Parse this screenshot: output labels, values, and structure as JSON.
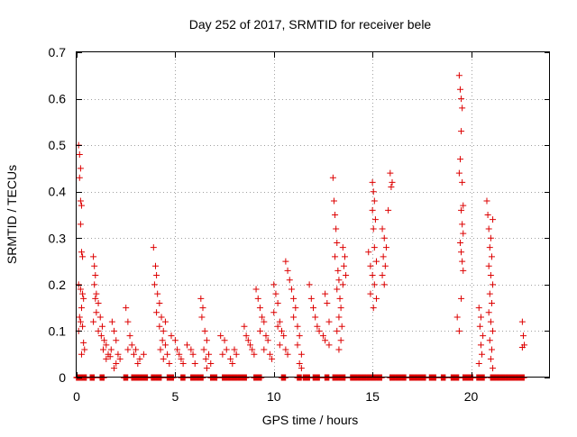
{
  "chart_data": {
    "type": "scatter",
    "title": "Day 252 of 2017, SRMTID for receiver bele",
    "xlabel": "GPS time / hours",
    "ylabel": "SRMTID / TECUs",
    "xlim": [
      0,
      24
    ],
    "ylim": [
      0,
      0.7
    ],
    "xticks": [
      0,
      5,
      10,
      15,
      20
    ],
    "xtick_labels": [
      "0",
      "5",
      "10",
      "15",
      "20"
    ],
    "yticks": [
      0,
      0.1,
      0.2,
      0.3,
      0.4,
      0.5,
      0.6,
      0.7
    ],
    "ytick_labels": [
      "0",
      "0.1",
      "0.2",
      "0.3",
      "0.4",
      "0.5",
      "0.6",
      "0.7"
    ],
    "grid": true,
    "marker": "+",
    "marker_color": "#dd0000",
    "series": [
      {
        "name": "SRMTID",
        "points": [
          [
            0.1,
            0.5
          ],
          [
            0.15,
            0.48
          ],
          [
            0.2,
            0.45
          ],
          [
            0.15,
            0.43
          ],
          [
            0.2,
            0.38
          ],
          [
            0.25,
            0.37
          ],
          [
            0.2,
            0.33
          ],
          [
            0.25,
            0.27
          ],
          [
            0.3,
            0.26
          ],
          [
            0.1,
            0.2
          ],
          [
            0.2,
            0.19
          ],
          [
            0.3,
            0.18
          ],
          [
            0.35,
            0.17
          ],
          [
            0.25,
            0.15
          ],
          [
            0.15,
            0.13
          ],
          [
            0.2,
            0.12
          ],
          [
            0.3,
            0.11
          ],
          [
            0.1,
            0.1
          ],
          [
            0.35,
            0.075
          ],
          [
            0.25,
            0.05
          ],
          [
            0.4,
            0.06
          ],
          [
            0.85,
            0.26
          ],
          [
            0.9,
            0.24
          ],
          [
            0.95,
            0.22
          ],
          [
            0.9,
            0.2
          ],
          [
            1.0,
            0.18
          ],
          [
            0.95,
            0.17
          ],
          [
            1.1,
            0.16
          ],
          [
            1.0,
            0.14
          ],
          [
            0.85,
            0.12
          ],
          [
            1.2,
            0.13
          ],
          [
            1.3,
            0.11
          ],
          [
            1.1,
            0.1
          ],
          [
            1.25,
            0.09
          ],
          [
            1.4,
            0.08
          ],
          [
            1.5,
            0.07
          ],
          [
            1.35,
            0.06
          ],
          [
            1.6,
            0.05
          ],
          [
            1.7,
            0.045
          ],
          [
            1.5,
            0.04
          ],
          [
            1.8,
            0.12
          ],
          [
            1.9,
            0.1
          ],
          [
            2.0,
            0.08
          ],
          [
            1.75,
            0.06
          ],
          [
            2.1,
            0.05
          ],
          [
            2.0,
            0.03
          ],
          [
            2.2,
            0.04
          ],
          [
            1.9,
            0.02
          ],
          [
            2.5,
            0.15
          ],
          [
            2.6,
            0.12
          ],
          [
            2.7,
            0.09
          ],
          [
            2.8,
            0.07
          ],
          [
            2.6,
            0.06
          ],
          [
            3.0,
            0.06
          ],
          [
            2.9,
            0.05
          ],
          [
            3.2,
            0.04
          ],
          [
            3.4,
            0.05
          ],
          [
            3.1,
            0.03
          ],
          [
            3.9,
            0.28
          ],
          [
            4.0,
            0.24
          ],
          [
            4.05,
            0.22
          ],
          [
            3.95,
            0.2
          ],
          [
            4.1,
            0.18
          ],
          [
            4.2,
            0.16
          ],
          [
            4.05,
            0.14
          ],
          [
            4.3,
            0.13
          ],
          [
            4.2,
            0.11
          ],
          [
            4.4,
            0.1
          ],
          [
            4.35,
            0.08
          ],
          [
            4.5,
            0.07
          ],
          [
            4.25,
            0.06
          ],
          [
            4.6,
            0.05
          ],
          [
            4.4,
            0.04
          ],
          [
            4.7,
            0.03
          ],
          [
            4.5,
            0.12
          ],
          [
            4.8,
            0.09
          ],
          [
            5.0,
            0.08
          ],
          [
            5.1,
            0.06
          ],
          [
            5.2,
            0.05
          ],
          [
            5.3,
            0.04
          ],
          [
            5.4,
            0.03
          ],
          [
            5.6,
            0.07
          ],
          [
            5.8,
            0.06
          ],
          [
            5.9,
            0.05
          ],
          [
            6.0,
            0.03
          ],
          [
            6.3,
            0.17
          ],
          [
            6.4,
            0.15
          ],
          [
            6.35,
            0.13
          ],
          [
            6.5,
            0.1
          ],
          [
            6.6,
            0.08
          ],
          [
            6.45,
            0.06
          ],
          [
            6.7,
            0.05
          ],
          [
            6.55,
            0.04
          ],
          [
            6.8,
            0.03
          ],
          [
            6.6,
            0.02
          ],
          [
            7.3,
            0.09
          ],
          [
            7.5,
            0.08
          ],
          [
            7.6,
            0.06
          ],
          [
            7.4,
            0.05
          ],
          [
            7.8,
            0.04
          ],
          [
            8.0,
            0.06
          ],
          [
            7.9,
            0.03
          ],
          [
            8.1,
            0.05
          ],
          [
            8.5,
            0.11
          ],
          [
            8.6,
            0.09
          ],
          [
            8.7,
            0.08
          ],
          [
            8.8,
            0.07
          ],
          [
            8.9,
            0.06
          ],
          [
            9.0,
            0.05
          ],
          [
            9.1,
            0.19
          ],
          [
            9.2,
            0.17
          ],
          [
            9.3,
            0.15
          ],
          [
            9.4,
            0.13
          ],
          [
            9.5,
            0.12
          ],
          [
            9.3,
            0.1
          ],
          [
            9.6,
            0.09
          ],
          [
            9.7,
            0.08
          ],
          [
            9.5,
            0.06
          ],
          [
            9.8,
            0.05
          ],
          [
            9.9,
            0.04
          ],
          [
            10.0,
            0.2
          ],
          [
            10.1,
            0.18
          ],
          [
            10.2,
            0.16
          ],
          [
            10.0,
            0.14
          ],
          [
            10.3,
            0.12
          ],
          [
            10.2,
            0.11
          ],
          [
            10.4,
            0.1
          ],
          [
            10.5,
            0.09
          ],
          [
            10.3,
            0.07
          ],
          [
            10.6,
            0.06
          ],
          [
            10.7,
            0.05
          ],
          [
            10.6,
            0.25
          ],
          [
            10.7,
            0.23
          ],
          [
            10.8,
            0.21
          ],
          [
            10.9,
            0.19
          ],
          [
            11.0,
            0.17
          ],
          [
            11.1,
            0.15
          ],
          [
            11.0,
            0.13
          ],
          [
            11.2,
            0.11
          ],
          [
            11.3,
            0.09
          ],
          [
            11.2,
            0.07
          ],
          [
            11.4,
            0.05
          ],
          [
            11.3,
            0.03
          ],
          [
            11.4,
            0.02
          ],
          [
            11.8,
            0.2
          ],
          [
            11.9,
            0.17
          ],
          [
            12.0,
            0.15
          ],
          [
            12.1,
            0.13
          ],
          [
            12.2,
            0.11
          ],
          [
            12.3,
            0.1
          ],
          [
            12.5,
            0.09
          ],
          [
            12.6,
            0.08
          ],
          [
            12.8,
            0.07
          ],
          [
            13.0,
            0.43
          ],
          [
            13.05,
            0.38
          ],
          [
            13.1,
            0.35
          ],
          [
            13.15,
            0.32
          ],
          [
            13.2,
            0.29
          ],
          [
            13.1,
            0.26
          ],
          [
            13.25,
            0.23
          ],
          [
            13.3,
            0.21
          ],
          [
            13.2,
            0.19
          ],
          [
            13.35,
            0.17
          ],
          [
            13.4,
            0.15
          ],
          [
            13.3,
            0.13
          ],
          [
            13.45,
            0.11
          ],
          [
            13.2,
            0.1
          ],
          [
            13.4,
            0.08
          ],
          [
            13.3,
            0.06
          ],
          [
            13.5,
            0.28
          ],
          [
            13.6,
            0.26
          ],
          [
            13.55,
            0.24
          ],
          [
            13.65,
            0.22
          ],
          [
            13.5,
            0.2
          ],
          [
            12.6,
            0.18
          ],
          [
            12.7,
            0.16
          ],
          [
            12.8,
            0.12
          ],
          [
            14.8,
            0.27
          ],
          [
            14.9,
            0.24
          ],
          [
            15.0,
            0.42
          ],
          [
            15.05,
            0.4
          ],
          [
            15.1,
            0.38
          ],
          [
            15.0,
            0.36
          ],
          [
            15.15,
            0.34
          ],
          [
            15.05,
            0.32
          ],
          [
            15.1,
            0.28
          ],
          [
            15.2,
            0.25
          ],
          [
            15.0,
            0.22
          ],
          [
            15.1,
            0.2
          ],
          [
            15.2,
            0.17
          ],
          [
            15.05,
            0.15
          ],
          [
            14.9,
            0.18
          ],
          [
            15.5,
            0.32
          ],
          [
            15.6,
            0.3
          ],
          [
            15.7,
            0.28
          ],
          [
            15.55,
            0.26
          ],
          [
            15.65,
            0.24
          ],
          [
            15.5,
            0.22
          ],
          [
            15.6,
            0.2
          ],
          [
            15.8,
            0.36
          ],
          [
            15.9,
            0.44
          ],
          [
            16.0,
            0.42
          ],
          [
            15.95,
            0.41
          ],
          [
            19.4,
            0.65
          ],
          [
            19.45,
            0.62
          ],
          [
            19.5,
            0.6
          ],
          [
            19.55,
            0.58
          ],
          [
            19.5,
            0.53
          ],
          [
            19.45,
            0.47
          ],
          [
            19.4,
            0.44
          ],
          [
            19.55,
            0.42
          ],
          [
            19.6,
            0.37
          ],
          [
            19.5,
            0.36
          ],
          [
            19.55,
            0.33
          ],
          [
            19.6,
            0.31
          ],
          [
            19.45,
            0.29
          ],
          [
            19.5,
            0.27
          ],
          [
            19.55,
            0.25
          ],
          [
            19.6,
            0.23
          ],
          [
            19.5,
            0.17
          ],
          [
            19.3,
            0.13
          ],
          [
            19.4,
            0.1
          ],
          [
            20.4,
            0.15
          ],
          [
            20.5,
            0.13
          ],
          [
            20.45,
            0.11
          ],
          [
            20.6,
            0.09
          ],
          [
            20.5,
            0.07
          ],
          [
            20.55,
            0.05
          ],
          [
            20.4,
            0.03
          ],
          [
            20.8,
            0.38
          ],
          [
            20.85,
            0.35
          ],
          [
            20.9,
            0.32
          ],
          [
            21.0,
            0.3
          ],
          [
            21.1,
            0.34
          ],
          [
            20.95,
            0.28
          ],
          [
            21.05,
            0.26
          ],
          [
            20.9,
            0.24
          ],
          [
            21.0,
            0.22
          ],
          [
            21.1,
            0.2
          ],
          [
            20.95,
            0.18
          ],
          [
            21.05,
            0.16
          ],
          [
            20.9,
            0.14
          ],
          [
            21.0,
            0.12
          ],
          [
            21.1,
            0.1
          ],
          [
            20.95,
            0.08
          ],
          [
            21.05,
            0.06
          ],
          [
            21.0,
            0.04
          ],
          [
            21.1,
            0.02
          ],
          [
            22.6,
            0.12
          ],
          [
            22.65,
            0.09
          ],
          [
            22.7,
            0.07
          ],
          [
            22.6,
            0.065
          ]
        ]
      }
    ],
    "zero_bands": [
      [
        0.0,
        0.5
      ],
      [
        0.7,
        0.9
      ],
      [
        1.2,
        1.4
      ],
      [
        2.4,
        2.6
      ],
      [
        2.8,
        3.6
      ],
      [
        3.8,
        4.3
      ],
      [
        4.6,
        4.9
      ],
      [
        5.3,
        5.5
      ],
      [
        5.8,
        6.4
      ],
      [
        6.8,
        7.1
      ],
      [
        7.4,
        8.6
      ],
      [
        9.0,
        9.4
      ],
      [
        10.4,
        10.6
      ],
      [
        11.2,
        11.4
      ],
      [
        11.5,
        11.8
      ],
      [
        12.0,
        12.3
      ],
      [
        12.6,
        12.8
      ],
      [
        13.0,
        13.6
      ],
      [
        13.9,
        15.5
      ],
      [
        15.9,
        16.7
      ],
      [
        16.9,
        17.7
      ],
      [
        17.9,
        18.2
      ],
      [
        18.5,
        18.7
      ],
      [
        19.0,
        19.4
      ],
      [
        19.6,
        20.1
      ],
      [
        20.3,
        20.7
      ],
      [
        21.0,
        22.7
      ]
    ]
  }
}
